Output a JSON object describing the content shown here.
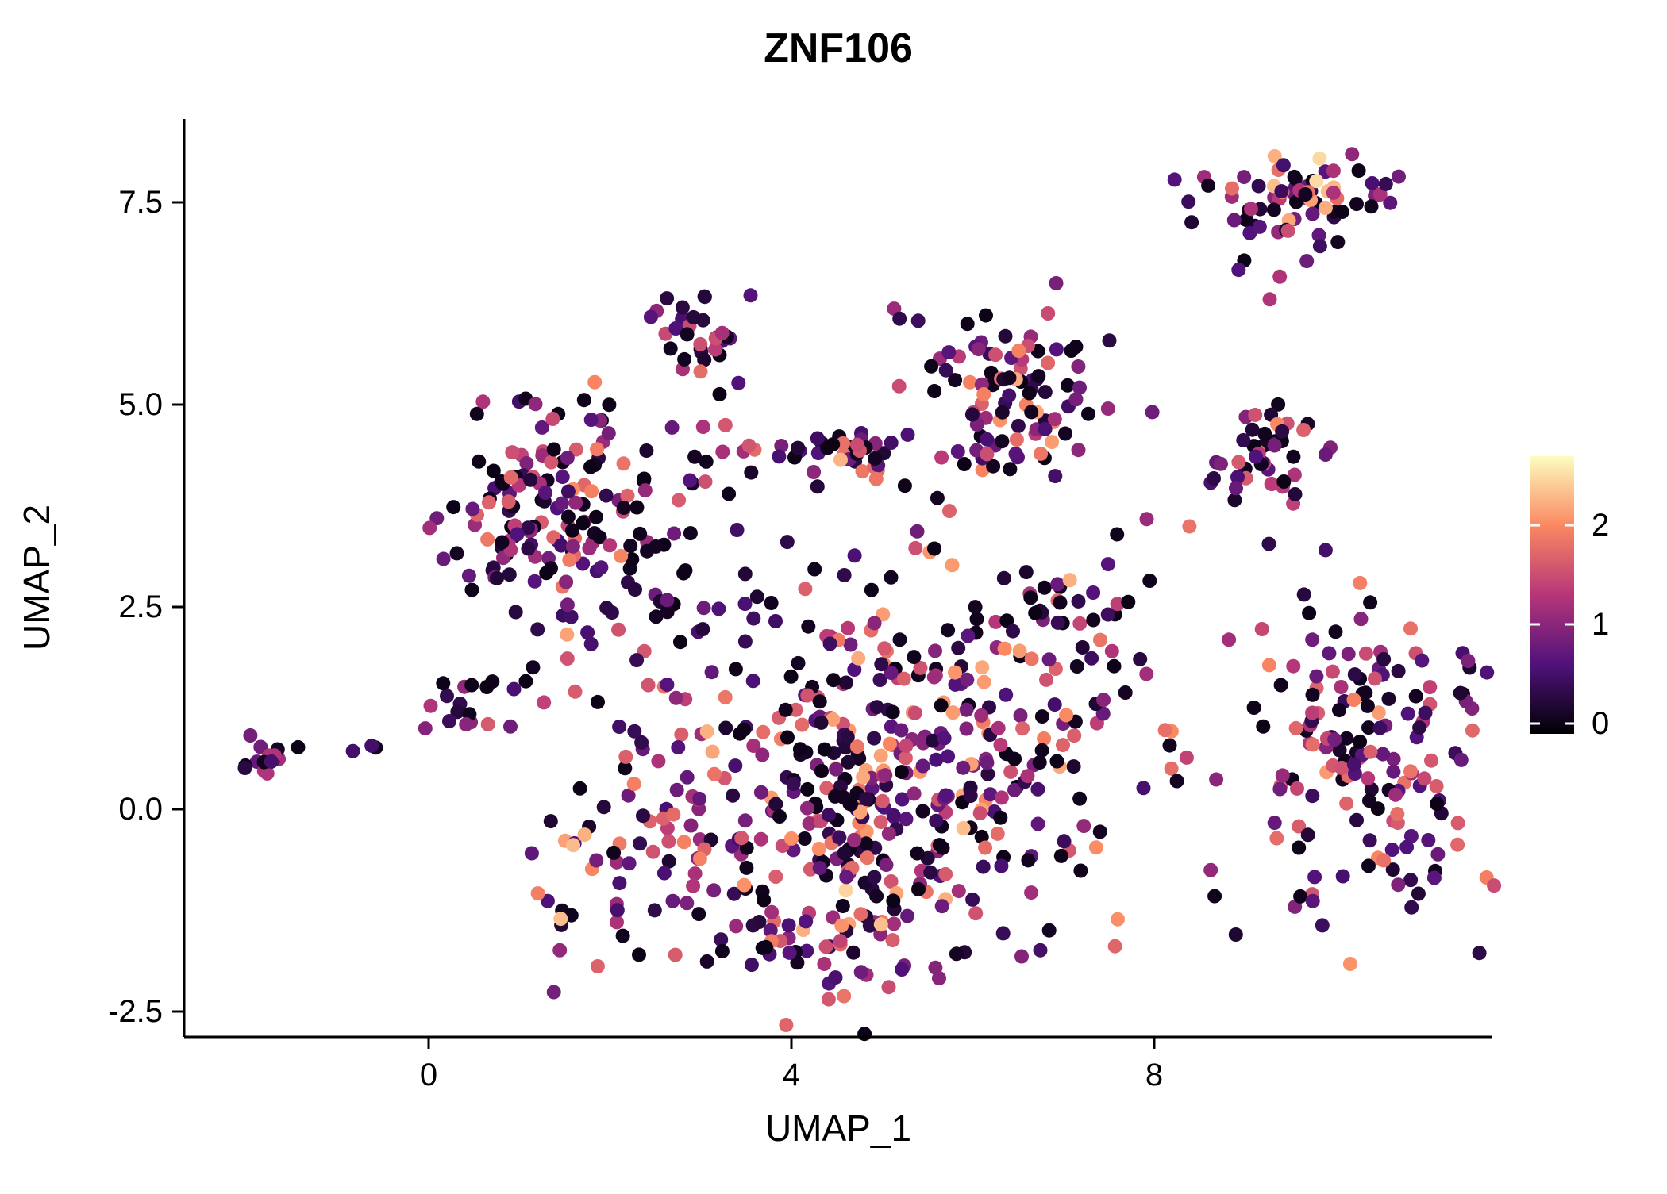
{
  "chart_data": {
    "type": "scatter",
    "title": "ZNF106",
    "xlabel": "UMAP_1",
    "ylabel": "UMAP_2",
    "xlim": [
      -2.7,
      11.75
    ],
    "ylim": [
      -2.81,
      8.53
    ],
    "grid": false,
    "x_ticks": {
      "values": [
        0,
        4,
        8
      ],
      "labels": [
        "0",
        "4",
        "8"
      ]
    },
    "y_ticks": {
      "values": [
        -2.5,
        0.0,
        2.5,
        5.0,
        7.5
      ],
      "labels": [
        "-2.5",
        "0.0",
        "2.5",
        "5.0",
        "7.5"
      ]
    },
    "legend": {
      "position": "right",
      "type": "colorbar",
      "domain": [
        -0.1,
        2.7
      ],
      "ticks": [
        {
          "value": 2,
          "label": "2"
        },
        {
          "value": 1,
          "label": "1"
        },
        {
          "value": 0,
          "label": "0"
        }
      ]
    },
    "colormap": {
      "name": "magma",
      "stops": [
        [
          "0",
          "#000004"
        ],
        [
          "0.25",
          "#50127b"
        ],
        [
          "0.5",
          "#b63679"
        ],
        [
          "0.75",
          "#fb8861"
        ],
        [
          "1",
          "#fcfdbf"
        ]
      ]
    },
    "point_radius": 9,
    "seed": 42,
    "clusters": [
      {
        "name": "far-left-blob",
        "cx": -1.75,
        "cy": 0.62,
        "sx": 0.15,
        "sy": 0.12,
        "n": 16,
        "p0": 0.15,
        "scale": 1.6
      },
      {
        "name": "left-pair",
        "cx": -0.75,
        "cy": 0.78,
        "sx": 0.18,
        "sy": 0.05,
        "n": 3,
        "p0": 0.3,
        "scale": 1.2
      },
      {
        "name": "left-small",
        "cx": 0.55,
        "cy": 1.35,
        "sx": 0.3,
        "sy": 0.22,
        "n": 20,
        "p0": 0.2,
        "scale": 1.5
      },
      {
        "name": "upper-left-cluster",
        "cx": 1.3,
        "cy": 3.8,
        "sx": 0.55,
        "sy": 0.65,
        "n": 140,
        "p0": 0.3,
        "scale": 1.8
      },
      {
        "name": "upper-left-trail",
        "cx": 2.1,
        "cy": 2.6,
        "sx": 0.5,
        "sy": 0.5,
        "n": 25,
        "p0": 0.2,
        "scale": 2.0
      },
      {
        "name": "top-mid-cluster",
        "cx": 3.0,
        "cy": 5.8,
        "sx": 0.28,
        "sy": 0.25,
        "n": 32,
        "p0": 0.12,
        "scale": 1.6
      },
      {
        "name": "mid-band",
        "cx": 3.6,
        "cy": 4.3,
        "sx": 0.8,
        "sy": 0.3,
        "n": 30,
        "p0": 0.25,
        "scale": 1.8
      },
      {
        "name": "mid-knot",
        "cx": 4.75,
        "cy": 4.35,
        "sx": 0.25,
        "sy": 0.2,
        "n": 22,
        "p0": 0.15,
        "scale": 2.0
      },
      {
        "name": "upper-right-mass",
        "cx": 6.4,
        "cy": 5.2,
        "sx": 0.55,
        "sy": 0.6,
        "n": 95,
        "p0": 0.15,
        "scale": 2.0
      },
      {
        "name": "right-mid-cluster",
        "cx": 9.3,
        "cy": 4.4,
        "sx": 0.4,
        "sy": 0.35,
        "n": 45,
        "p0": 0.25,
        "scale": 1.8
      },
      {
        "name": "top-right-cluster",
        "cx": 9.6,
        "cy": 7.5,
        "sx": 0.5,
        "sy": 0.28,
        "n": 70,
        "p0": 0.2,
        "scale": 2.3
      },
      {
        "name": "top-right-below",
        "cx": 9.2,
        "cy": 6.6,
        "sx": 0.35,
        "sy": 0.25,
        "n": 6,
        "p0": 0.2,
        "scale": 1.8
      },
      {
        "name": "center-mass",
        "cx": 4.9,
        "cy": 0.5,
        "sx": 1.35,
        "sy": 1.15,
        "n": 430,
        "p0": 0.18,
        "scale": 2.1
      },
      {
        "name": "center-bottom-arm",
        "cx": 4.6,
        "cy": -1.4,
        "sx": 0.9,
        "sy": 0.45,
        "n": 60,
        "p0": 0.15,
        "scale": 2.2
      },
      {
        "name": "left-bottom-arm",
        "cx": 2.2,
        "cy": -0.3,
        "sx": 0.5,
        "sy": 0.7,
        "n": 45,
        "p0": 0.12,
        "scale": 2.2
      },
      {
        "name": "bridge",
        "cx": 7.3,
        "cy": 2.4,
        "sx": 0.5,
        "sy": 0.5,
        "n": 30,
        "p0": 0.25,
        "scale": 2.0
      },
      {
        "name": "right-cluster",
        "cx": 10.4,
        "cy": 0.5,
        "sx": 0.75,
        "sy": 0.95,
        "n": 170,
        "p0": 0.22,
        "scale": 1.9
      },
      {
        "name": "sparse-middle",
        "cx": 5.5,
        "cy": 3.3,
        "sx": 2.0,
        "sy": 0.8,
        "n": 25,
        "p0": 0.3,
        "scale": 1.8
      }
    ]
  }
}
